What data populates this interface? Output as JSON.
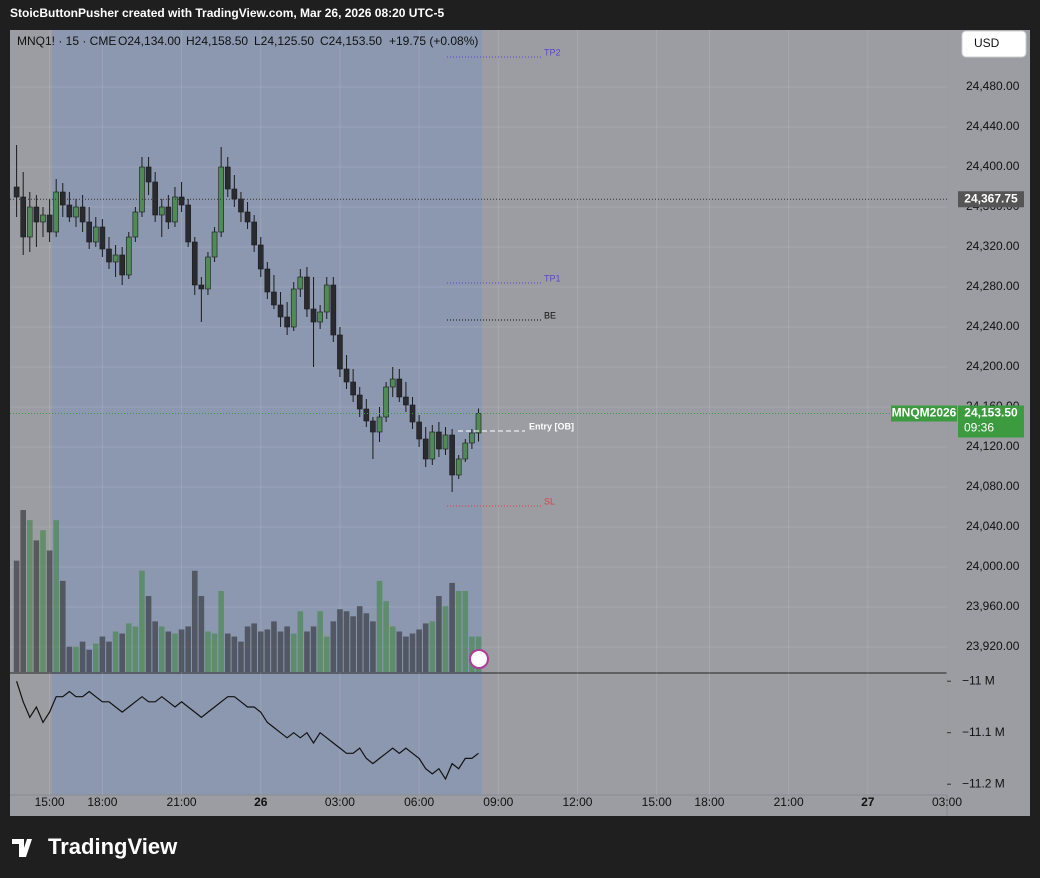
{
  "header": "StoicButtonPusher created with TradingView.com, Mar 26, 2026 08:20 UTC-5",
  "footer_logo": "TradingView",
  "chart_data": {
    "type": "candlestick",
    "legend": {
      "symbol": "MNQ1! · 15 · CME",
      "open": "O24,134.00",
      "high": "H24,158.50",
      "low": "L24,125.50",
      "close": "C24,153.50",
      "change": "+19.75 (+0.08%)"
    },
    "currency": "USD",
    "ylim": [
      23895,
      24537
    ],
    "yticks": [
      {
        "value": 24480,
        "label": "24,480.00"
      },
      {
        "value": 24440,
        "label": "24,440.00"
      },
      {
        "value": 24400,
        "label": "24,400.00"
      },
      {
        "value": 24360,
        "label": "24,360.00"
      },
      {
        "value": 24320,
        "label": "24,320.00"
      },
      {
        "value": 24280,
        "label": "24,280.00"
      },
      {
        "value": 24240,
        "label": "24,240.00"
      },
      {
        "value": 24200,
        "label": "24,200.00"
      },
      {
        "value": 24160,
        "label": "24,160.00"
      },
      {
        "value": 24120,
        "label": "24,120.00"
      },
      {
        "value": 24080,
        "label": "24,080.00"
      },
      {
        "value": 24040,
        "label": "24,040.00"
      },
      {
        "value": 24000,
        "label": "24,000.00"
      },
      {
        "value": 23960,
        "label": "23,960.00"
      },
      {
        "value": 23920,
        "label": "23,920.00"
      }
    ],
    "xlim": [
      -1,
      141
    ],
    "xticks": [
      {
        "value": 5,
        "label": "15:00"
      },
      {
        "value": 13,
        "label": "18:00"
      },
      {
        "value": 25,
        "label": "21:00"
      },
      {
        "value": 37,
        "label": "26"
      },
      {
        "value": 49,
        "label": "03:00"
      },
      {
        "value": 61,
        "label": "06:00"
      },
      {
        "value": 73,
        "label": "09:00"
      },
      {
        "value": 85,
        "label": "12:00"
      },
      {
        "value": 97,
        "label": "15:00"
      },
      {
        "value": 105,
        "label": "18:00"
      },
      {
        "value": 117,
        "label": "21:00"
      },
      {
        "value": 129,
        "label": "27"
      },
      {
        "value": 141,
        "label": "03:00"
      }
    ],
    "up_color": "#4f8a57",
    "down_color": "#2a2b30",
    "ohlc": [
      [
        24380,
        24422,
        24350,
        24370
      ],
      [
        24370,
        24395,
        24312,
        24330
      ],
      [
        24330,
        24375,
        24315,
        24360
      ],
      [
        24360,
        24372,
        24320,
        24345
      ],
      [
        24345,
        24360,
        24330,
        24352
      ],
      [
        24352,
        24368,
        24325,
        24335
      ],
      [
        24335,
        24388,
        24330,
        24375
      ],
      [
        24375,
        24384,
        24350,
        24362
      ],
      [
        24362,
        24375,
        24345,
        24350
      ],
      [
        24350,
        24368,
        24340,
        24360
      ],
      [
        24360,
        24372,
        24335,
        24345
      ],
      [
        24345,
        24360,
        24318,
        24325
      ],
      [
        24325,
        24350,
        24320,
        24340
      ],
      [
        24340,
        24348,
        24310,
        24318
      ],
      [
        24318,
        24330,
        24298,
        24305
      ],
      [
        24305,
        24322,
        24290,
        24312
      ],
      [
        24312,
        24320,
        24282,
        24292
      ],
      [
        24292,
        24335,
        24288,
        24330
      ],
      [
        24330,
        24360,
        24325,
        24355
      ],
      [
        24355,
        24410,
        24350,
        24400
      ],
      [
        24400,
        24410,
        24372,
        24385
      ],
      [
        24385,
        24395,
        24345,
        24352
      ],
      [
        24352,
        24368,
        24330,
        24360
      ],
      [
        24360,
        24372,
        24338,
        24345
      ],
      [
        24345,
        24380,
        24340,
        24370
      ],
      [
        24370,
        24385,
        24355,
        24362
      ],
      [
        24362,
        24368,
        24320,
        24325
      ],
      [
        24325,
        24330,
        24272,
        24282
      ],
      [
        24282,
        24290,
        24245,
        24278
      ],
      [
        24278,
        24315,
        24272,
        24310
      ],
      [
        24310,
        24340,
        24305,
        24335
      ],
      [
        24335,
        24420,
        24330,
        24400
      ],
      [
        24400,
        24410,
        24370,
        24378
      ],
      [
        24378,
        24392,
        24360,
        24368
      ],
      [
        24368,
        24375,
        24345,
        24355
      ],
      [
        24355,
        24365,
        24338,
        24345
      ],
      [
        24345,
        24352,
        24315,
        24322
      ],
      [
        24322,
        24330,
        24290,
        24298
      ],
      [
        24298,
        24305,
        24268,
        24275
      ],
      [
        24275,
        24292,
        24258,
        24262
      ],
      [
        24262,
        24275,
        24240,
        24250
      ],
      [
        24250,
        24265,
        24232,
        24240
      ],
      [
        24240,
        24285,
        24236,
        24278
      ],
      [
        24278,
        24298,
        24270,
        24290
      ],
      [
        24290,
        24300,
        24250,
        24258
      ],
      [
        24258,
        24290,
        24200,
        24245
      ],
      [
        24245,
        24262,
        24238,
        24255
      ],
      [
        24255,
        24290,
        24248,
        24282
      ],
      [
        24282,
        24290,
        24225,
        24232
      ],
      [
        24232,
        24240,
        24190,
        24198
      ],
      [
        24198,
        24212,
        24178,
        24185
      ],
      [
        24185,
        24198,
        24165,
        24172
      ],
      [
        24172,
        24180,
        24150,
        24158
      ],
      [
        24158,
        24168,
        24140,
        24146
      ],
      [
        24146,
        24150,
        24108,
        24135
      ],
      [
        24135,
        24160,
        24125,
        24150
      ],
      [
        24150,
        24185,
        24145,
        24180
      ],
      [
        24180,
        24200,
        24170,
        24188
      ],
      [
        24188,
        24198,
        24165,
        24170
      ],
      [
        24170,
        24185,
        24155,
        24162
      ],
      [
        24162,
        24170,
        24138,
        24145
      ],
      [
        24145,
        24152,
        24120,
        24128
      ],
      [
        24128,
        24140,
        24100,
        24108
      ],
      [
        24108,
        24142,
        24102,
        24135
      ],
      [
        24135,
        24145,
        24110,
        24118
      ],
      [
        24118,
        24140,
        24112,
        24132
      ],
      [
        24132,
        24138,
        24075,
        24092
      ],
      [
        24092,
        24112,
        24088,
        24108
      ],
      [
        24108,
        24128,
        24105,
        24124
      ],
      [
        24124,
        24138,
        24118,
        24134
      ],
      [
        24134,
        24158.5,
        24125.5,
        24153.5
      ]
    ],
    "volume": [
      110,
      160,
      150,
      130,
      140,
      120,
      150,
      90,
      25,
      25,
      30,
      22,
      28,
      35,
      30,
      40,
      38,
      48,
      45,
      100,
      75,
      50,
      45,
      40,
      38,
      42,
      45,
      100,
      75,
      40,
      38,
      80,
      38,
      35,
      30,
      45,
      48,
      40,
      42,
      50,
      40,
      45,
      38,
      60,
      40,
      45,
      60,
      35,
      50,
      62,
      60,
      55,
      65,
      58,
      50,
      90,
      70,
      45,
      40,
      35,
      38,
      42,
      48,
      50,
      75,
      65,
      88,
      80,
      80,
      35,
      35
    ],
    "indicator": {
      "color": "#111111",
      "ylim": [
        -11.221,
        -10.986
      ],
      "yticks": [
        {
          "value": -11,
          "label": "−11 M"
        },
        {
          "value": -11.1,
          "label": "−11.1 M"
        },
        {
          "value": -11.2,
          "label": "−11.2 M"
        }
      ],
      "values": [
        -11.0,
        -11.04,
        -11.07,
        -11.05,
        -11.08,
        -11.06,
        -11.03,
        -11.03,
        -11.02,
        -11.03,
        -11.03,
        -11.02,
        -11.03,
        -11.04,
        -11.04,
        -11.05,
        -11.06,
        -11.05,
        -11.04,
        -11.03,
        -11.04,
        -11.04,
        -11.03,
        -11.04,
        -11.05,
        -11.04,
        -11.05,
        -11.06,
        -11.07,
        -11.06,
        -11.05,
        -11.04,
        -11.03,
        -11.03,
        -11.04,
        -11.05,
        -11.05,
        -11.06,
        -11.08,
        -11.09,
        -11.1,
        -11.11,
        -11.1,
        -11.11,
        -11.1,
        -11.12,
        -11.1,
        -11.11,
        -11.12,
        -11.13,
        -11.14,
        -11.14,
        -11.13,
        -11.15,
        -11.16,
        -11.15,
        -11.14,
        -11.13,
        -11.14,
        -11.13,
        -11.14,
        -11.15,
        -11.17,
        -11.18,
        -11.17,
        -11.19,
        -11.16,
        -11.17,
        -11.15,
        -11.15,
        -11.14
      ]
    },
    "levels": [
      {
        "label": "TP2",
        "value": 24510,
        "color": "#5b45c9"
      },
      {
        "label": "TP1",
        "value": 24284,
        "color": "#5b45c9"
      },
      {
        "label": "BE",
        "value": 24247,
        "color": "#111111"
      },
      {
        "label": "Entry [OB]",
        "value": 24136,
        "color": "#ffffff"
      },
      {
        "label": "SL",
        "value": 24061,
        "color": "#e04040"
      }
    ],
    "marked_level": {
      "value": 24367.75,
      "label": "24,367.75"
    },
    "last_price": {
      "symbol": "MNQM2026",
      "label": "24,153.50",
      "countdown": "09:36",
      "color": "#3c9a3f"
    }
  }
}
